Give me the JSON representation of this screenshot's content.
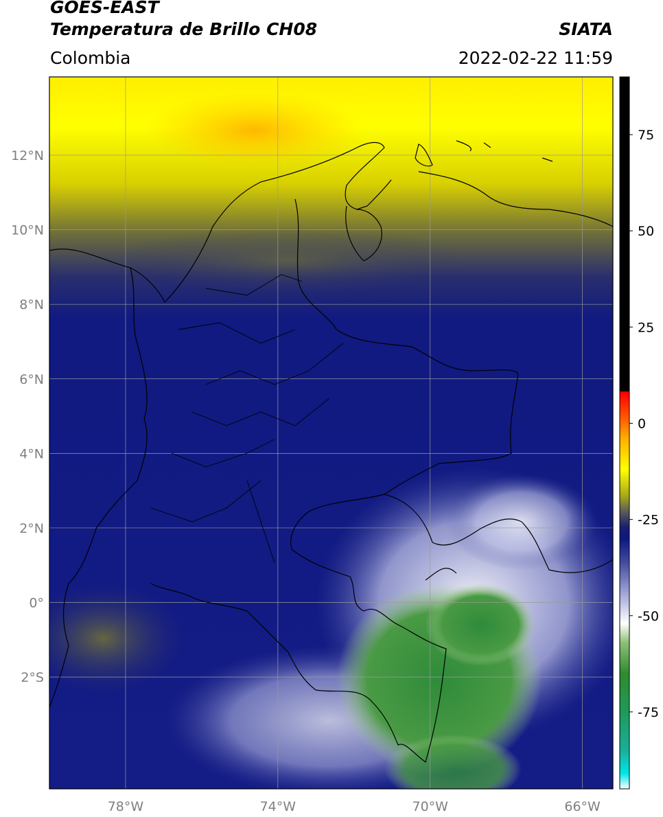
{
  "header": {
    "satellite": "GOES-EAST",
    "product": "Temperatura de Brillo CH08",
    "region": "Colombia",
    "agency": "SIATA",
    "datetime": "2022-02-22 11:59"
  },
  "map": {
    "lon_range": [
      -80,
      -65.2
    ],
    "lat_range": [
      -5.0,
      14.1
    ],
    "lat_ticks": [
      {
        "value": 12,
        "label": "12°N"
      },
      {
        "value": 10,
        "label": "10°N"
      },
      {
        "value": 8,
        "label": "8°N"
      },
      {
        "value": 6,
        "label": "6°N"
      },
      {
        "value": 4,
        "label": "4°N"
      },
      {
        "value": 2,
        "label": "2°N"
      },
      {
        "value": 0,
        "label": "0°"
      },
      {
        "value": -2,
        "label": "2°S"
      }
    ],
    "lon_ticks": [
      {
        "value": -78,
        "label": "78°W"
      },
      {
        "value": -74,
        "label": "74°W"
      },
      {
        "value": -70,
        "label": "70°W"
      },
      {
        "value": -66,
        "label": "66°W"
      }
    ],
    "gridlines": true
  },
  "colorbar": {
    "range": [
      -95,
      90
    ],
    "ticks": [
      {
        "value": 75,
        "label": "75"
      },
      {
        "value": 50,
        "label": "50"
      },
      {
        "value": 25,
        "label": "25"
      },
      {
        "value": 0,
        "label": "0"
      },
      {
        "value": -25,
        "label": "-25"
      },
      {
        "value": -50,
        "label": "-50"
      },
      {
        "value": -75,
        "label": "-75"
      }
    ],
    "stops": [
      {
        "value": -95,
        "color": "#ffffff"
      },
      {
        "value": -91,
        "color": "#00e6e6"
      },
      {
        "value": -85,
        "color": "#1aaf9a"
      },
      {
        "value": -75,
        "color": "#1f9a5a"
      },
      {
        "value": -65,
        "color": "#2e8b2e"
      },
      {
        "value": -57,
        "color": "#8fbf7a"
      },
      {
        "value": -52,
        "color": "#ffffff"
      },
      {
        "value": -44,
        "color": "#9da3d6"
      },
      {
        "value": -36,
        "color": "#404a9e"
      },
      {
        "value": -30,
        "color": "#0d1880"
      },
      {
        "value": -27,
        "color": "#1a1e6e"
      },
      {
        "value": -23,
        "color": "#5a5a5a"
      },
      {
        "value": -19,
        "color": "#a6a61a"
      },
      {
        "value": -12,
        "color": "#ffff00"
      },
      {
        "value": -4,
        "color": "#ffb000"
      },
      {
        "value": 1,
        "color": "#ff6000"
      },
      {
        "value": 8,
        "color": "#ff0000"
      },
      {
        "value": 8.5,
        "color": "#000000"
      },
      {
        "value": 90,
        "color": "#000000"
      }
    ]
  }
}
